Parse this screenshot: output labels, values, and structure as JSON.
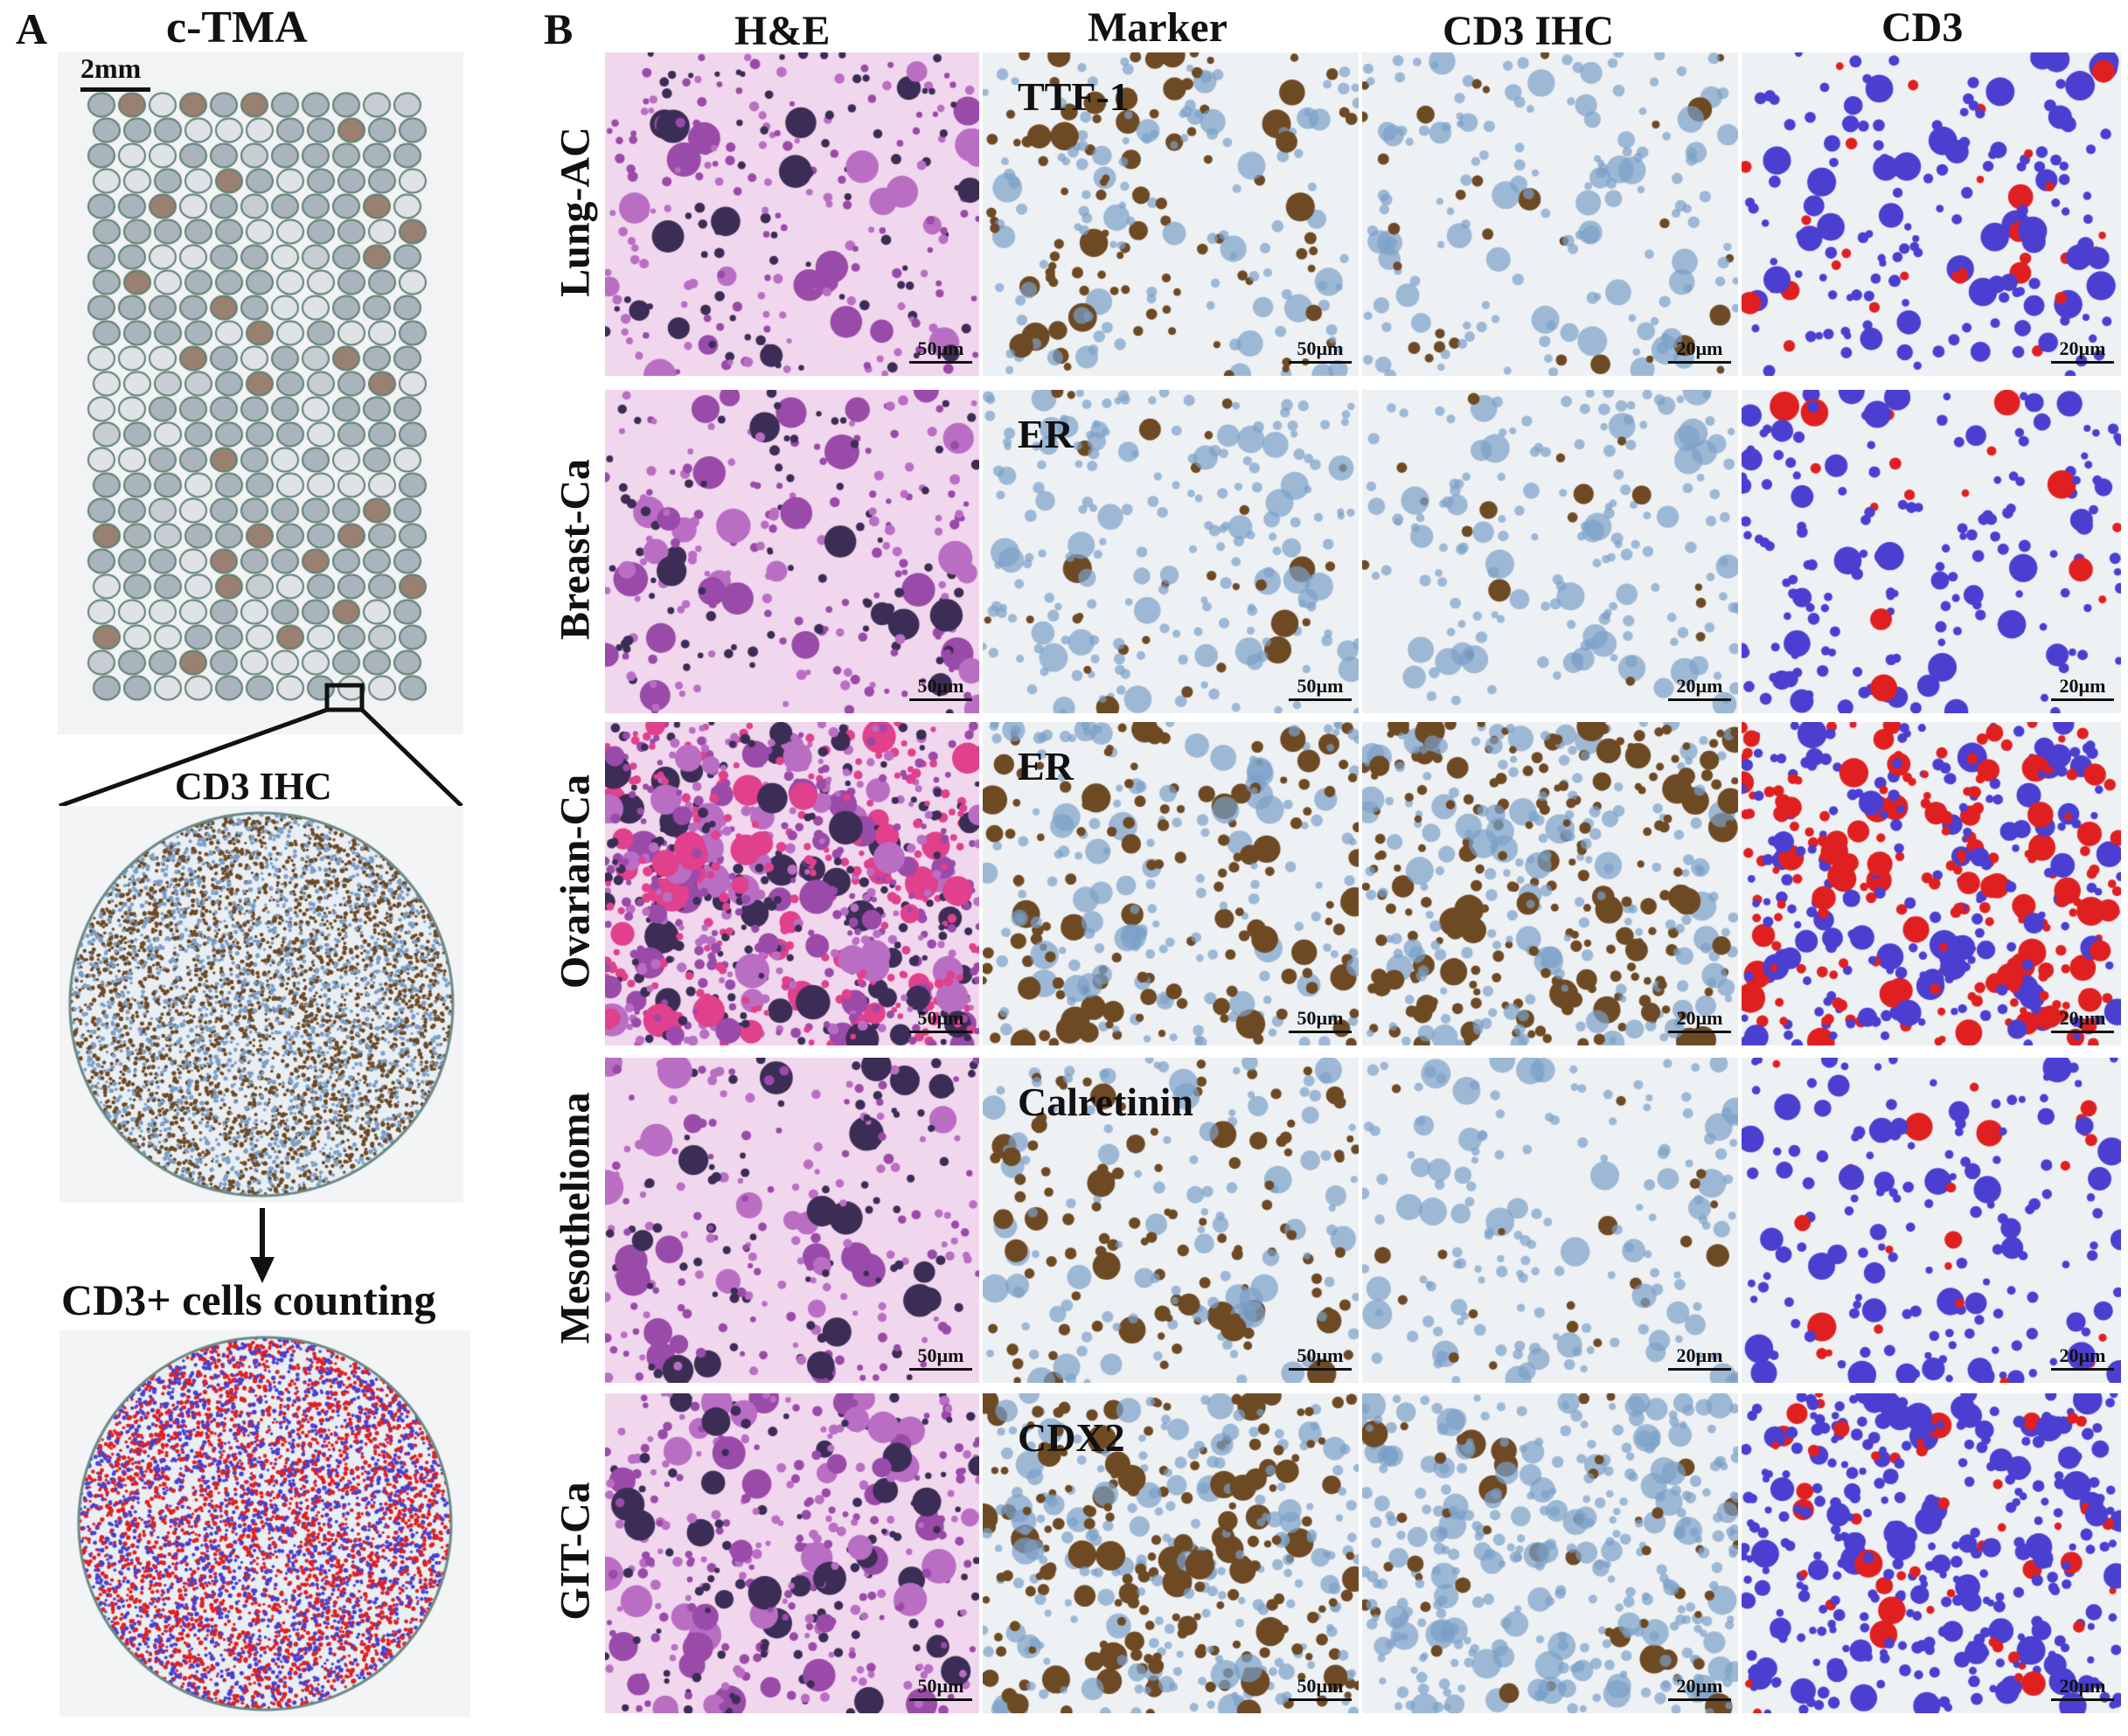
{
  "panel_a": {
    "letter": "A",
    "title": "c-TMA",
    "scale_label": "2mm",
    "zoom_title": "CD3 IHC",
    "count_title": "CD3+ cells counting"
  },
  "panel_b": {
    "letter": "B",
    "columns": [
      "H&E",
      "Marker",
      "CD3 IHC",
      "CD3"
    ],
    "rows": [
      {
        "label": "Lung-AC",
        "marker": "TTF-1",
        "scales": [
          "50µm",
          "50µm",
          "20µm",
          "20µm"
        ]
      },
      {
        "label": "Breast-Ca",
        "marker": "ER",
        "scales": [
          "50µm",
          "50µm",
          "20µm",
          "20µm"
        ]
      },
      {
        "label": "Ovarian-Ca",
        "marker": "ER",
        "scales": [
          "50µm",
          "50µm",
          "20µm",
          "20µm"
        ]
      },
      {
        "label": "Mesothelioma",
        "marker": "Calretinin",
        "scales": [
          "50µm",
          "50µm",
          "20µm",
          "20µm"
        ]
      },
      {
        "label": "GIT-Ca",
        "marker": "CDX2",
        "scales": [
          "50µm",
          "50µm",
          "20µm",
          "20µm"
        ]
      }
    ]
  },
  "colors": {
    "he_bg": "#f1d7ee",
    "he_cell": "#8e3d9c",
    "ihc_bg": "#eef1f4",
    "hematoxylin": "#7b9fc8",
    "dab": "#6e4a24",
    "mask_neg": "#4a3fd0",
    "mask_pos": "#e02020"
  }
}
